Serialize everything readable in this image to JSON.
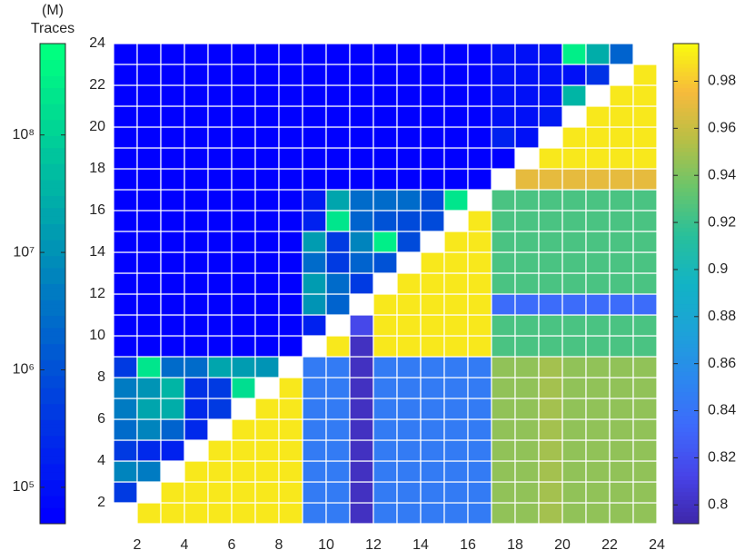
{
  "chart_data": {
    "type": "heatmap",
    "xlim": [
      1,
      24
    ],
    "ylim": [
      1,
      24
    ],
    "xticks": [
      2,
      4,
      6,
      8,
      10,
      12,
      14,
      16,
      18,
      20,
      22,
      24
    ],
    "yticks": [
      2,
      4,
      6,
      8,
      10,
      12,
      14,
      16,
      18,
      20,
      22,
      24
    ],
    "cell_edge_color": "#ffffff",
    "rows": [
      [
        null,
        0.99,
        0.99,
        0.99,
        0.99,
        0.99,
        0.99,
        0.99,
        0.845,
        0.845,
        0.8,
        0.845,
        0.845,
        0.845,
        0.845,
        0.845,
        0.945,
        0.945,
        0.95,
        0.945,
        0.945,
        0.945,
        0.945
      ],
      [
        400000,
        null,
        0.99,
        0.99,
        0.99,
        0.99,
        0.99,
        0.99,
        0.845,
        0.845,
        0.8,
        0.845,
        0.845,
        0.845,
        0.845,
        0.845,
        0.945,
        0.945,
        0.95,
        0.945,
        0.945,
        0.945,
        0.945
      ],
      [
        6000000,
        5000000,
        null,
        0.99,
        0.99,
        0.99,
        0.99,
        0.99,
        0.845,
        0.845,
        0.8,
        0.845,
        0.845,
        0.845,
        0.845,
        0.845,
        0.945,
        0.945,
        0.95,
        0.945,
        0.945,
        0.945,
        0.945
      ],
      [
        400000,
        250000,
        200000,
        null,
        0.99,
        0.99,
        0.99,
        0.99,
        0.845,
        0.845,
        0.8,
        0.845,
        0.845,
        0.845,
        0.845,
        0.845,
        0.945,
        0.945,
        0.95,
        0.945,
        0.945,
        0.945,
        0.945
      ],
      [
        2500000,
        6000000,
        2000000,
        250000,
        null,
        0.99,
        0.99,
        0.99,
        0.845,
        0.845,
        0.8,
        0.845,
        0.845,
        0.845,
        0.845,
        0.845,
        0.945,
        0.945,
        0.95,
        0.945,
        0.945,
        0.945,
        0.945
      ],
      [
        5000000,
        20000000,
        30000000,
        250000,
        400000,
        null,
        0.99,
        0.99,
        0.845,
        0.845,
        0.8,
        0.845,
        0.845,
        0.845,
        0.845,
        0.845,
        0.945,
        0.945,
        0.95,
        0.945,
        0.945,
        0.945,
        0.945
      ],
      [
        5000000,
        10000000,
        40000000,
        300000,
        400000,
        150000000,
        null,
        0.99,
        0.845,
        0.845,
        0.8,
        0.845,
        0.845,
        0.845,
        0.845,
        0.845,
        0.945,
        0.945,
        0.95,
        0.945,
        0.945,
        0.945,
        0.945
      ],
      [
        500000,
        200000000,
        3000000,
        3000000,
        20000000,
        15000000,
        12000000,
        null,
        0.845,
        0.845,
        0.8,
        0.845,
        0.845,
        0.845,
        0.845,
        0.845,
        0.945,
        0.945,
        0.95,
        0.945,
        0.945,
        0.945,
        0.945
      ],
      [
        50000,
        50000,
        50000,
        50000,
        50000,
        50000,
        50000,
        50000,
        null,
        0.99,
        0.8,
        0.99,
        0.99,
        0.99,
        0.99,
        0.99,
        0.925,
        0.925,
        0.925,
        0.925,
        0.925,
        0.925,
        0.925
      ],
      [
        50000,
        50000,
        50000,
        50000,
        50000,
        50000,
        50000,
        50000,
        200000,
        null,
        0.815,
        0.99,
        0.99,
        0.99,
        0.99,
        0.99,
        0.925,
        0.925,
        0.925,
        0.925,
        0.925,
        0.925,
        0.925
      ],
      [
        50000,
        50000,
        50000,
        50000,
        50000,
        50000,
        50000,
        50000,
        10000000,
        2000000,
        null,
        0.99,
        0.99,
        0.99,
        0.99,
        0.99,
        0.835,
        0.835,
        0.835,
        0.835,
        0.835,
        0.835,
        0.835
      ],
      [
        50000,
        50000,
        50000,
        50000,
        50000,
        50000,
        50000,
        50000,
        15000000,
        3000000,
        500000,
        null,
        0.99,
        0.99,
        0.99,
        0.99,
        0.925,
        0.925,
        0.925,
        0.925,
        0.925,
        0.925,
        0.925
      ],
      [
        50000,
        50000,
        50000,
        50000,
        50000,
        50000,
        50000,
        50000,
        3000000,
        500000,
        2000000,
        1000000,
        null,
        0.99,
        0.99,
        0.99,
        0.925,
        0.925,
        0.925,
        0.925,
        0.925,
        0.925,
        0.925
      ],
      [
        50000,
        50000,
        50000,
        50000,
        50000,
        50000,
        50000,
        50000,
        15000000,
        500000,
        6000000,
        300000000,
        800000,
        null,
        0.99,
        0.99,
        0.925,
        0.925,
        0.925,
        0.925,
        0.925,
        0.925,
        0.925
      ],
      [
        50000,
        50000,
        50000,
        50000,
        50000,
        50000,
        50000,
        50000,
        200000,
        200000000,
        2000000,
        1000000,
        800000,
        800000,
        null,
        0.99,
        0.925,
        0.925,
        0.925,
        0.925,
        0.925,
        0.925,
        0.925
      ],
      [
        50000,
        50000,
        50000,
        50000,
        50000,
        50000,
        50000,
        50000,
        150000,
        20000000,
        3000000,
        3000000,
        3000000,
        800000,
        200000000,
        null,
        0.925,
        0.925,
        0.925,
        0.925,
        0.925,
        0.925,
        0.925
      ],
      [
        50000,
        50000,
        50000,
        50000,
        50000,
        50000,
        50000,
        50000,
        50000,
        50000,
        50000,
        50000,
        50000,
        50000,
        50000,
        50000,
        null,
        0.97,
        0.97,
        0.97,
        0.97,
        0.97,
        0.97
      ],
      [
        50000,
        50000,
        50000,
        50000,
        50000,
        50000,
        50000,
        50000,
        50000,
        50000,
        50000,
        50000,
        50000,
        50000,
        50000,
        50000,
        50000,
        null,
        0.99,
        0.99,
        0.99,
        0.99,
        0.99
      ],
      [
        50000,
        50000,
        50000,
        50000,
        50000,
        50000,
        50000,
        50000,
        50000,
        50000,
        50000,
        50000,
        50000,
        50000,
        50000,
        50000,
        200000,
        100000,
        null,
        0.99,
        0.99,
        0.99,
        0.99
      ],
      [
        50000,
        50000,
        50000,
        50000,
        50000,
        50000,
        50000,
        50000,
        50000,
        50000,
        50000,
        50000,
        50000,
        50000,
        50000,
        50000,
        100000,
        100000,
        150000,
        null,
        0.99,
        0.99,
        0.99
      ],
      [
        50000,
        50000,
        50000,
        50000,
        50000,
        50000,
        50000,
        50000,
        50000,
        50000,
        50000,
        50000,
        50000,
        50000,
        50000,
        50000,
        100000,
        100000,
        100000,
        40000000,
        null,
        0.99,
        0.99
      ],
      [
        50000,
        50000,
        50000,
        50000,
        50000,
        50000,
        50000,
        50000,
        50000,
        50000,
        50000,
        50000,
        50000,
        50000,
        50000,
        50000,
        100000,
        100000,
        100000,
        100000,
        300000,
        null,
        0.99
      ],
      [
        50000,
        50000,
        50000,
        50000,
        50000,
        50000,
        50000,
        50000,
        50000,
        50000,
        50000,
        50000,
        50000,
        50000,
        50000,
        50000,
        100000,
        100000,
        100000,
        300000000,
        30000000,
        2000000,
        null
      ]
    ],
    "colorbar_left": {
      "title_lines": [
        "(M)",
        "Traces"
      ],
      "log_scale": true,
      "ylim": [
        49000,
        600000000
      ],
      "yticks": [
        {
          "value": 100000,
          "label": "10⁵"
        },
        {
          "value": 1000000,
          "label": "10⁶"
        },
        {
          "value": 10000000,
          "label": "10⁷"
        },
        {
          "value": 100000000,
          "label": "10⁸"
        }
      ],
      "colors": [
        "#0000ff",
        "#00ff80"
      ],
      "steps": 32
    },
    "colorbar_right": {
      "log_scale": false,
      "ylim": [
        0.792,
        0.996
      ],
      "yticks": [
        0.8,
        0.82,
        0.84,
        0.86,
        0.88,
        0.9,
        0.92,
        0.94,
        0.96,
        0.98
      ],
      "colors": [
        "#3e26a8",
        "#4743e8",
        "#3e69fb",
        "#2c87ef",
        "#1da2d8",
        "#12b3c5",
        "#28c09b",
        "#6ac56b",
        "#b8bf45",
        "#f7ba3c",
        "#f9fb0e"
      ]
    }
  }
}
